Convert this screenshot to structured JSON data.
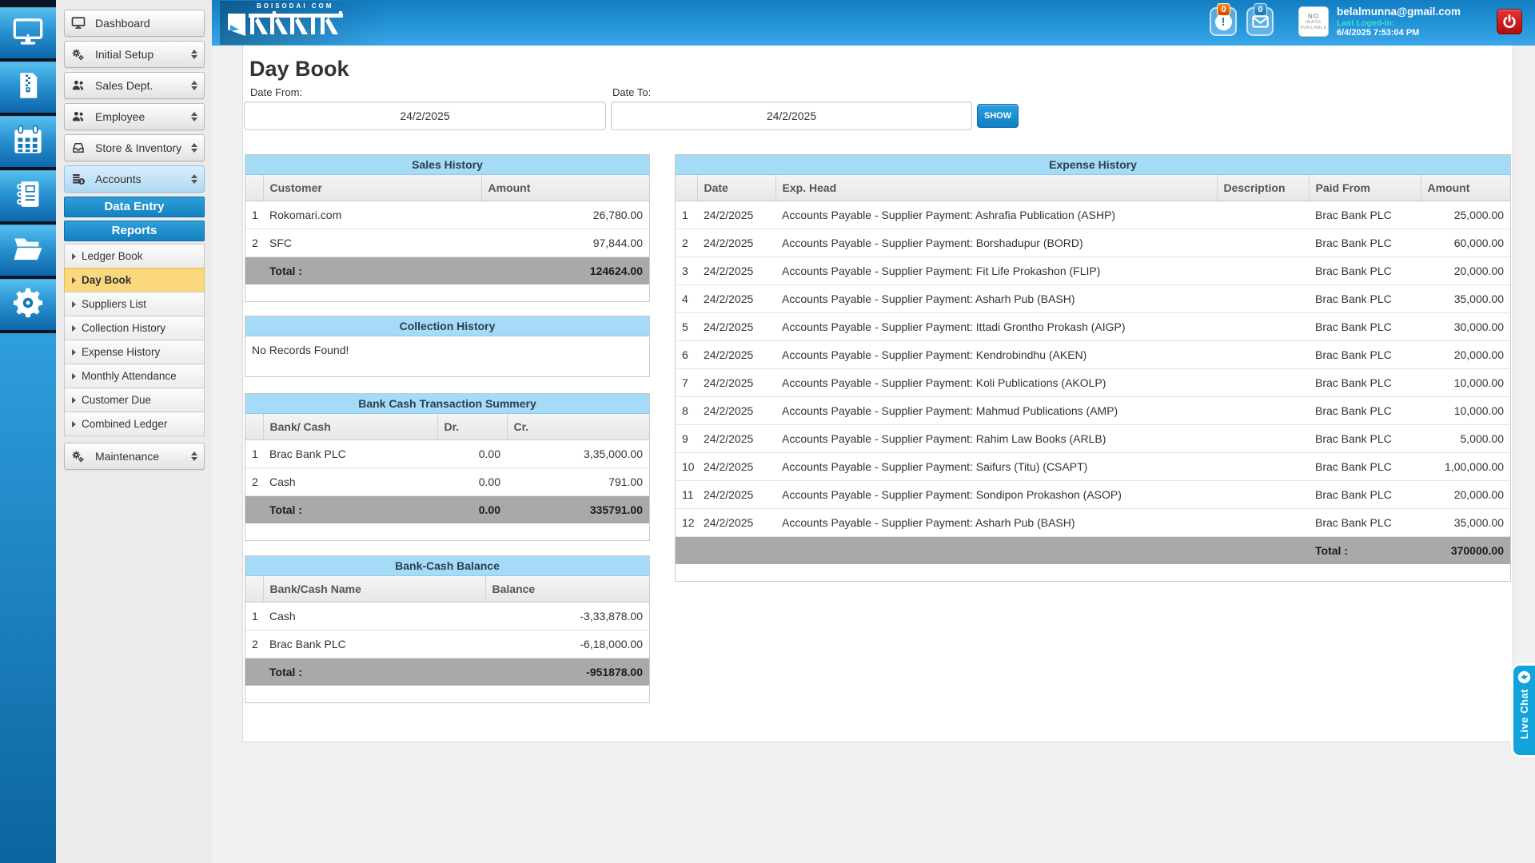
{
  "header": {
    "logo_caption": "BOISODAI COM",
    "logo_text": "বইসদাই",
    "notifications_badge": "0",
    "messages_badge": "0",
    "no_image_line1": "NO",
    "no_image_line2": "IMAGE",
    "no_image_line3": "AVAILABLE",
    "email": "belalmunna@gmail.com",
    "last_login_label": "Last Loged-in:",
    "last_login_value": "6/4/2025 7:53:04 PM"
  },
  "sidebar": {
    "rail_icons": [
      "monitor",
      "zip-file",
      "calendar",
      "ledger-book",
      "folder",
      "gear"
    ],
    "items": [
      {
        "type": "item",
        "label": "Dashboard",
        "icon": "monitor",
        "arrows": false
      },
      {
        "type": "item",
        "label": "Initial Setup",
        "icon": "gears",
        "arrows": true
      },
      {
        "type": "item",
        "label": "Sales Dept.",
        "icon": "people",
        "arrows": true
      },
      {
        "type": "item",
        "label": "Employee",
        "icon": "people",
        "arrows": true
      },
      {
        "type": "item",
        "label": "Store & Inventory",
        "icon": "drawer",
        "arrows": true
      },
      {
        "type": "item",
        "label": "Accounts",
        "icon": "coins",
        "arrows": true,
        "active": true
      },
      {
        "type": "section",
        "label": "Data Entry"
      },
      {
        "type": "section",
        "label": "Reports"
      },
      {
        "type": "sub",
        "label": "Ledger Book"
      },
      {
        "type": "sub",
        "label": "Day Book",
        "active": true
      },
      {
        "type": "sub",
        "label": "Suppliers List"
      },
      {
        "type": "sub",
        "label": "Collection History"
      },
      {
        "type": "sub",
        "label": "Expense History"
      },
      {
        "type": "sub",
        "label": "Monthly Attendance"
      },
      {
        "type": "sub",
        "label": "Customer Due"
      },
      {
        "type": "sub",
        "label": "Combined Ledger"
      },
      {
        "type": "item",
        "label": "Maintenance",
        "icon": "gears",
        "arrows": true,
        "maint": true
      }
    ]
  },
  "page": {
    "title": "Day Book",
    "date_from_label": "Date From:",
    "date_from_value": "24/2/2025",
    "date_to_label": "Date To:",
    "date_to_value": "24/2/2025",
    "show_button": "SHOW"
  },
  "tables": {
    "sales": {
      "title": "Sales History",
      "columns": [
        "",
        "Customer",
        "Amount"
      ],
      "rows": [
        [
          "1",
          "Rokomari.com",
          "26,780.00"
        ],
        [
          "2",
          "SFC",
          "97,844.00"
        ]
      ],
      "total_row": [
        "",
        "Total :",
        "124624.00"
      ]
    },
    "collection": {
      "title": "Collection History",
      "empty_text": "No Records Found!"
    },
    "bank_cash": {
      "title": "Bank Cash Transaction Summery",
      "columns": [
        "",
        "Bank/ Cash",
        "Dr.",
        "Cr."
      ],
      "rows": [
        [
          "1",
          "Brac Bank PLC",
          "0.00",
          "3,35,000.00"
        ],
        [
          "2",
          "Cash",
          "0.00",
          "791.00"
        ]
      ],
      "total_row": [
        "",
        "Total :",
        "0.00",
        "335791.00"
      ]
    },
    "balance": {
      "title": "Bank-Cash Balance",
      "columns": [
        "",
        "Bank/Cash Name",
        "Balance"
      ],
      "rows": [
        [
          "1",
          "Cash",
          "-3,33,878.00"
        ],
        [
          "2",
          "Brac Bank PLC",
          "-6,18,000.00"
        ]
      ],
      "total_row": [
        "",
        "Total :",
        "-951878.00"
      ]
    },
    "expense": {
      "title": "Expense History",
      "columns": [
        "",
        "Date",
        "Exp. Head",
        "Description",
        "Paid From",
        "Amount"
      ],
      "rows": [
        [
          "1",
          "24/2/2025",
          "Accounts Payable - Supplier Payment: Ashrafia Publication (ASHP)",
          "",
          "Brac Bank PLC",
          "25,000.00"
        ],
        [
          "2",
          "24/2/2025",
          "Accounts Payable - Supplier Payment: Borshadupur (BORD)",
          "",
          "Brac Bank PLC",
          "60,000.00"
        ],
        [
          "3",
          "24/2/2025",
          "Accounts Payable - Supplier Payment: Fit Life Prokashon (FLIP)",
          "",
          "Brac Bank PLC",
          "20,000.00"
        ],
        [
          "4",
          "24/2/2025",
          "Accounts Payable - Supplier Payment: Asharh Pub (BASH)",
          "",
          "Brac Bank PLC",
          "35,000.00"
        ],
        [
          "5",
          "24/2/2025",
          "Accounts Payable - Supplier Payment: Ittadi Grontho Prokash (AIGP)",
          "",
          "Brac Bank PLC",
          "30,000.00"
        ],
        [
          "6",
          "24/2/2025",
          "Accounts Payable - Supplier Payment: Kendrobindhu (AKEN)",
          "",
          "Brac Bank PLC",
          "20,000.00"
        ],
        [
          "7",
          "24/2/2025",
          "Accounts Payable - Supplier Payment: Koli Publications (AKOLP)",
          "",
          "Brac Bank PLC",
          "10,000.00"
        ],
        [
          "8",
          "24/2/2025",
          "Accounts Payable - Supplier Payment: Mahmud Publications (AMP)",
          "",
          "Brac Bank PLC",
          "10,000.00"
        ],
        [
          "9",
          "24/2/2025",
          "Accounts Payable - Supplier Payment: Rahim Law Books (ARLB)",
          "",
          "Brac Bank PLC",
          "5,000.00"
        ],
        [
          "10",
          "24/2/2025",
          "Accounts Payable - Supplier Payment: Saifurs (Titu) (CSAPT)",
          "",
          "Brac Bank PLC",
          "1,00,000.00"
        ],
        [
          "11",
          "24/2/2025",
          "Accounts Payable - Supplier Payment: Sondipon Prokashon (ASOP)",
          "",
          "Brac Bank PLC",
          "20,000.00"
        ],
        [
          "12",
          "24/2/2025",
          "Accounts Payable - Supplier Payment: Asharh Pub (BASH)",
          "",
          "Brac Bank PLC",
          "35,000.00"
        ]
      ],
      "total_row": [
        "",
        "",
        "",
        "",
        "Total :",
        "370000.00"
      ]
    }
  },
  "live_chat": {
    "label": "Live Chat"
  },
  "colors": {
    "header_top": "#137ec2",
    "header_bottom": "#3aa6e8",
    "section_blue": "#1a8ccc",
    "active_item_orange": "#fbd77e",
    "active_item_blue": "#aed9f2",
    "table_title_blue": "#a6dbf7",
    "total_row_gray": "#a9a9a9",
    "power_red": "#c41212",
    "badge_orange": "#e05a00",
    "live_chat_blue": "#10a3dc"
  }
}
